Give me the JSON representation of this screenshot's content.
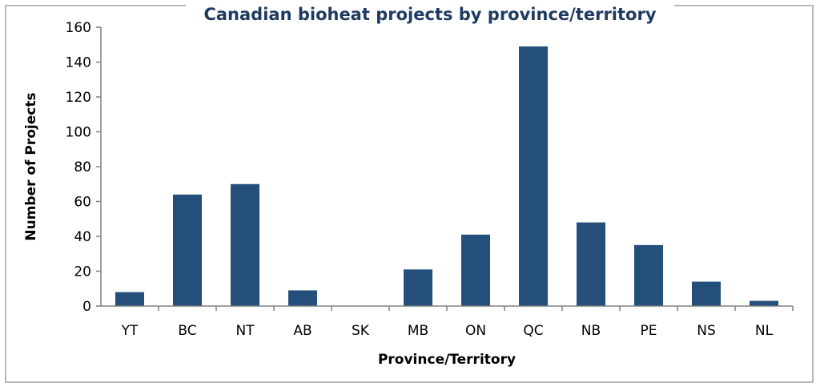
{
  "chart_data": {
    "type": "bar",
    "title": "Canadian bioheat projects by province/territory",
    "xlabel": "Province/Territory",
    "ylabel": "Number of Projects",
    "categories": [
      "YT",
      "BC",
      "NT",
      "AB",
      "SK",
      "MB",
      "ON",
      "QC",
      "NB",
      "PE",
      "NS",
      "NL"
    ],
    "values": [
      8,
      64,
      70,
      9,
      0,
      21,
      41,
      149,
      48,
      35,
      14,
      3
    ],
    "ylim": [
      0,
      160
    ],
    "yticks": [
      0,
      20,
      40,
      60,
      80,
      100,
      120,
      140,
      160
    ],
    "grid": false,
    "legend": "none",
    "bar_color": "#234f7a",
    "title_color": "#1f3a5f",
    "axis_color": "#808080"
  }
}
